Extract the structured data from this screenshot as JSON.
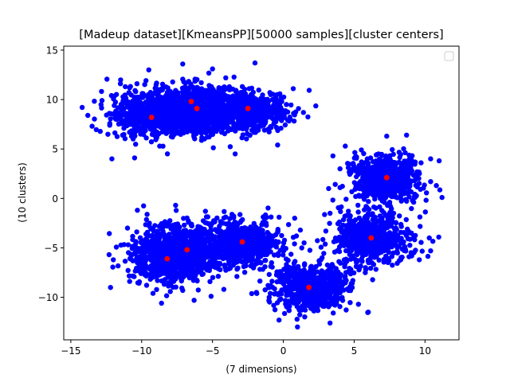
{
  "chart_data": {
    "type": "scatter",
    "title": "[Madeup dataset][KmeansPP][50000 samples][cluster centers]",
    "xlabel": "(7 dimensions)",
    "ylabel": "(10 clusters)",
    "xlim": [
      -15.5,
      12.4
    ],
    "ylim": [
      -14.3,
      15.4
    ],
    "xticks": [
      -15,
      -10,
      -5,
      0,
      5,
      10
    ],
    "yticks": [
      -10,
      -5,
      0,
      5,
      10,
      15
    ],
    "grid": false,
    "legend": {
      "placement": "top-right",
      "entries": []
    },
    "series": [
      {
        "role": "samples",
        "color": "#0000ff",
        "blobs": [
          {
            "center": [
              -9.4,
              8.5
            ],
            "spread": [
              1.3,
              1.1
            ]
          },
          {
            "center": [
              -6.6,
              9.2
            ],
            "spread": [
              1.3,
              1.1
            ]
          },
          {
            "center": [
              -6.1,
              8.9
            ],
            "spread": [
              1.2,
              1.1
            ]
          },
          {
            "center": [
              -2.6,
              8.9
            ],
            "spread": [
              1.4,
              1.0
            ]
          },
          {
            "center": [
              7.3,
              2.1
            ],
            "spread": [
              1.2,
              1.2
            ]
          },
          {
            "center": [
              6.2,
              -4.0
            ],
            "spread": [
              1.3,
              1.3
            ]
          },
          {
            "center": [
              1.9,
              -9.0
            ],
            "spread": [
              1.3,
              1.1
            ]
          },
          {
            "center": [
              -8.2,
              -6.0
            ],
            "spread": [
              1.4,
              1.3
            ]
          },
          {
            "center": [
              -6.9,
              -5.2
            ],
            "spread": [
              1.4,
              1.3
            ]
          },
          {
            "center": [
              -2.9,
              -4.5
            ],
            "spread": [
              1.4,
              1.2
            ]
          }
        ],
        "outliers": [
          [
            -14.2,
            9.2
          ],
          [
            -13.8,
            8.4
          ],
          [
            -13.5,
            7.3
          ],
          [
            -12.8,
            9.9
          ],
          [
            -12.1,
            4.0
          ],
          [
            -11.5,
            11.6
          ],
          [
            -9.5,
            13.0
          ],
          [
            -7.1,
            13.6
          ],
          [
            -5.0,
            13.1
          ],
          [
            -2.0,
            13.7
          ],
          [
            0.7,
            11.1
          ],
          [
            -3.4,
            4.5
          ],
          [
            -10.5,
            4.1
          ],
          [
            -0.4,
            5.4
          ],
          [
            8.7,
            6.4
          ],
          [
            7.3,
            6.3
          ],
          [
            11.0,
            3.8
          ],
          [
            10.4,
            4.0
          ],
          [
            10.8,
            1.3
          ],
          [
            11.2,
            0.1
          ],
          [
            3.5,
            4.3
          ],
          [
            4.0,
            3.0
          ],
          [
            3.2,
            1.0
          ],
          [
            4.0,
            1.1
          ],
          [
            3.3,
            -1.5
          ],
          [
            3.0,
            -3.3
          ],
          [
            10.3,
            -4.0
          ],
          [
            10.4,
            -5.3
          ],
          [
            9.6,
            -6.2
          ],
          [
            5.8,
            -7.0
          ],
          [
            4.8,
            -8.6
          ],
          [
            6.0,
            -11.5
          ],
          [
            5.3,
            -10.7
          ],
          [
            3.3,
            -12.6
          ],
          [
            1.0,
            -13.0
          ],
          [
            -0.3,
            -12.3
          ],
          [
            -1.0,
            -10.0
          ],
          [
            -1.9,
            -9.5
          ],
          [
            -12.2,
            -9.0
          ],
          [
            -12.0,
            -6.2
          ],
          [
            -11.0,
            -3.0
          ],
          [
            -10.3,
            -1.2
          ],
          [
            -7.6,
            -0.7
          ],
          [
            -5.5,
            -1.3
          ],
          [
            -3.5,
            -1.8
          ],
          [
            -0.4,
            -3.4
          ],
          [
            0.8,
            -2.0
          ],
          [
            1.2,
            -3.2
          ],
          [
            1.3,
            -5.0
          ],
          [
            -4.2,
            -9.2
          ],
          [
            -7.1,
            -9.3
          ],
          [
            -9.2,
            -9.6
          ],
          [
            -8.6,
            -10.6
          ],
          [
            -6.3,
            -10.3
          ],
          [
            -5.1,
            -9.9
          ]
        ]
      },
      {
        "role": "cluster centers",
        "color": "#ff0000",
        "points": [
          [
            -9.3,
            8.2
          ],
          [
            -6.5,
            9.8
          ],
          [
            -6.1,
            9.1
          ],
          [
            -2.5,
            9.1
          ],
          [
            7.3,
            2.1
          ],
          [
            6.2,
            -4.0
          ],
          [
            1.8,
            -9.0
          ],
          [
            -8.2,
            -6.1
          ],
          [
            -6.8,
            -5.2
          ],
          [
            -2.9,
            -4.4
          ]
        ]
      }
    ]
  }
}
